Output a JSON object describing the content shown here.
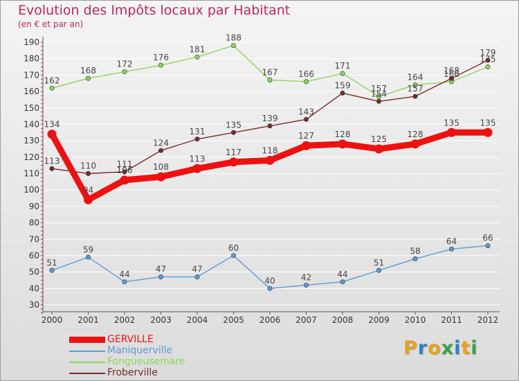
{
  "header": {
    "title": "Evolution des Impôts locaux par Habitant",
    "subtitle": "(en € et par an)"
  },
  "brand": {
    "letters": [
      "P",
      "r",
      "o",
      "x",
      "i",
      "t",
      "i"
    ],
    "colors": [
      "#e8a020",
      "#2e7fc2",
      "#e8a020",
      "#3aa24a",
      "#2e7fc2",
      "#e8a020",
      "#3aa24a"
    ]
  },
  "chart_data": {
    "type": "line",
    "title": "Evolution des Impôts locaux par Habitant",
    "subtitle": "(en € et par an)",
    "xlabel": "",
    "ylabel": "",
    "x": [
      "2000",
      "2001",
      "2002",
      "2003",
      "2004",
      "2005",
      "2006",
      "2007",
      "2008",
      "2009",
      "2010",
      "2011",
      "2012"
    ],
    "ylim": [
      30,
      190
    ],
    "yticks": [
      30,
      40,
      50,
      60,
      70,
      80,
      90,
      100,
      110,
      120,
      130,
      140,
      150,
      160,
      170,
      180,
      190
    ],
    "legend_position": "bottom-left",
    "series": [
      {
        "name": "GERVILLE",
        "color": "#ee1111",
        "emphasis": true,
        "values": [
          134,
          94,
          106,
          108,
          113,
          117,
          118,
          127,
          128,
          125,
          128,
          135,
          135
        ],
        "labels": [
          "134",
          "94",
          "106",
          "108",
          "113",
          "117",
          "118",
          "127",
          "128",
          "125",
          "128",
          "135",
          "135"
        ]
      },
      {
        "name": "Maniquerville",
        "color": "#5b9bd5",
        "emphasis": false,
        "values": [
          51,
          59,
          44,
          47,
          47,
          60,
          40,
          42,
          44,
          51,
          58,
          64,
          66
        ],
        "labels": [
          "51",
          "59",
          "44",
          "47",
          "47",
          "60",
          "40",
          "42",
          "44",
          "51",
          "58",
          "64",
          "66"
        ]
      },
      {
        "name": "Fongueusemare",
        "color": "#8fd45a",
        "emphasis": false,
        "values": [
          162,
          168,
          172,
          176,
          181,
          188,
          167,
          166,
          171,
          157,
          164,
          166,
          175
        ],
        "labels": [
          "162",
          "168",
          "172",
          "176",
          "181",
          "188",
          "167",
          "166",
          "171",
          "157",
          "164",
          "166",
          "175"
        ]
      },
      {
        "name": "Froberville",
        "color": "#7a2a2a",
        "emphasis": false,
        "values": [
          113,
          110,
          111,
          124,
          131,
          135,
          139,
          143,
          159,
          154,
          157,
          168,
          179
        ],
        "labels": [
          "113",
          "110",
          "111",
          "124",
          "131",
          "135",
          "139",
          "143",
          "159",
          "154",
          "157",
          "168",
          "179"
        ]
      }
    ]
  }
}
